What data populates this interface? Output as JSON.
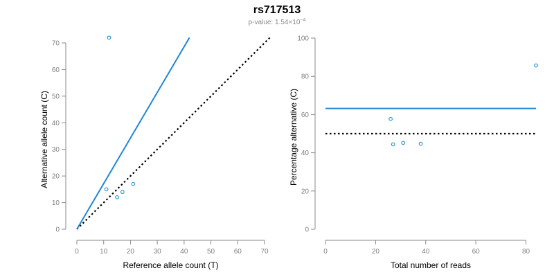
{
  "figure": {
    "title": "rs717513",
    "subtitle_prefix": "p-value: 1.54×10",
    "subtitle_exponent": "−4"
  },
  "colors": {
    "points": "#1f8fd0",
    "fit_line": "#1f86d6",
    "reference_line": "#000000"
  },
  "chart_data": [
    {
      "type": "scatter",
      "xlabel": "Reference allele count (T)",
      "ylabel": "Alternative allele count (C)",
      "xlim": [
        0,
        70
      ],
      "ylim": [
        0,
        70
      ],
      "xticks": [
        0,
        10,
        20,
        30,
        40,
        50,
        60,
        70
      ],
      "yticks": [
        0,
        10,
        20,
        30,
        40,
        50,
        60,
        70
      ],
      "x": [
        12,
        11,
        15,
        17,
        21
      ],
      "y": [
        72,
        15,
        12,
        14,
        17
      ],
      "fit_line": {
        "x": [
          0,
          42
        ],
        "y": [
          0,
          72
        ]
      },
      "reference_line": {
        "x": [
          0,
          72
        ],
        "y": [
          0,
          72
        ]
      }
    },
    {
      "type": "scatter",
      "xlabel": "Total number of reads",
      "ylabel": "Percentage alternative (C)",
      "xlim": [
        0,
        84
      ],
      "ylim": [
        0,
        100
      ],
      "xticks": [
        0,
        20,
        40,
        60,
        80
      ],
      "yticks": [
        0,
        20,
        40,
        60,
        80,
        100
      ],
      "x": [
        26,
        27,
        31,
        38,
        84
      ],
      "y": [
        57.7,
        44.4,
        45.2,
        44.7,
        85.7
      ],
      "fit_line": {
        "x": [
          0,
          84
        ],
        "y": [
          63.2,
          63.2
        ]
      },
      "reference_line": {
        "x": [
          0,
          84
        ],
        "y": [
          50,
          50
        ]
      }
    }
  ]
}
